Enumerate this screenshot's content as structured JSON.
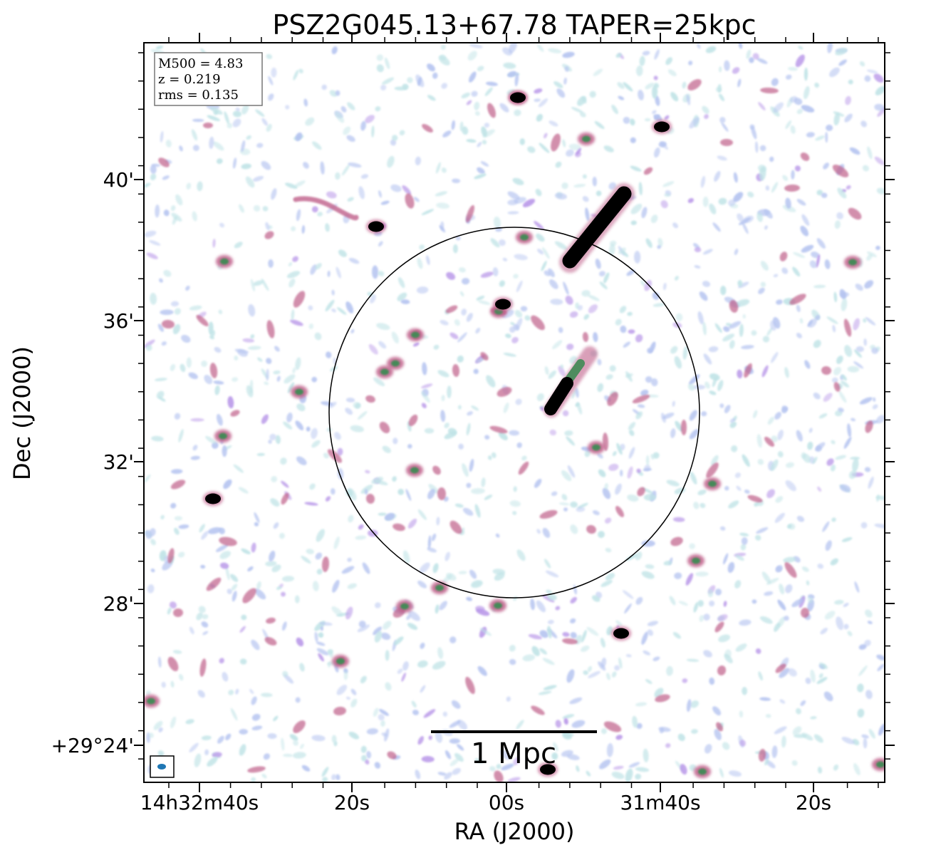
{
  "chart_data": {
    "type": "heatmap",
    "title": "PSZ2G045.13+67.78 TAPER=25kpc",
    "xlabel": "RA (J2000)",
    "ylabel": "Dec (J2000)",
    "x_ticks": [
      "14h32m40s",
      "20s",
      "00s",
      "31m40s",
      "20s"
    ],
    "y_ticks": [
      "40'",
      "36'",
      "32'",
      "28'",
      "+29°24'"
    ],
    "info_box": [
      "M500 = 4.83",
      "z = 0.219",
      "rms = 0.135"
    ],
    "scalebar_label": "1 Mpc",
    "colormap": [
      "#ffffff",
      "#bfe3e6",
      "#b4c3f0",
      "#b896e8",
      "#c0608a",
      "#3f8a55",
      "#000000"
    ],
    "circle_color": "#000000",
    "beam_color": "#1f77b4",
    "background": "#ffffff"
  }
}
